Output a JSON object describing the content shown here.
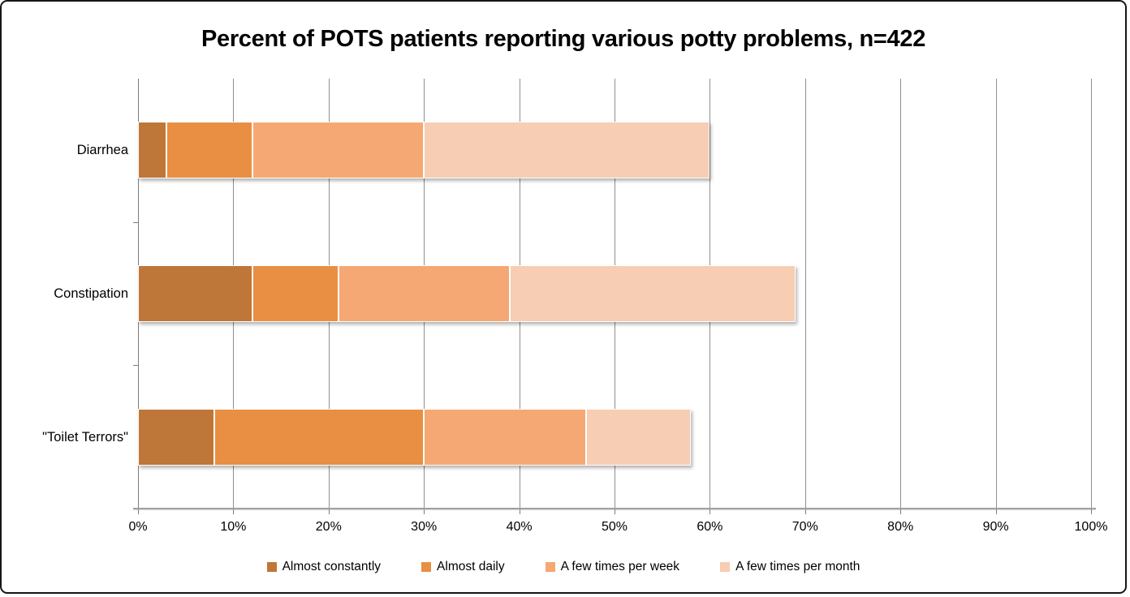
{
  "title": "Percent of POTS patients reporting various potty problems, n=422",
  "chart_data": {
    "type": "bar",
    "orientation": "horizontal",
    "stacked": true,
    "title": "Percent of POTS patients reporting various potty problems, n=422",
    "categories": [
      "Diarrhea",
      "Constipation",
      "\"Toilet Terrors\""
    ],
    "series": [
      {
        "name": "Almost constantly",
        "color": "#BF7639",
        "values": [
          3,
          12,
          8
        ]
      },
      {
        "name": "Almost daily",
        "color": "#E88F43",
        "values": [
          9,
          9,
          22
        ]
      },
      {
        "name": "A few times per week",
        "color": "#F5A873",
        "values": [
          18,
          18,
          17
        ]
      },
      {
        "name": "A few times per month",
        "color": "#F7CDB3",
        "values": [
          30,
          30,
          11
        ]
      }
    ],
    "stack_totals": [
      60,
      69,
      58
    ],
    "xlabel": "",
    "ylabel": "",
    "xlim": [
      0,
      100
    ],
    "x_tick_step": 10,
    "x_tick_labels": [
      "0%",
      "10%",
      "20%",
      "30%",
      "40%",
      "50%",
      "60%",
      "70%",
      "80%",
      "90%",
      "100%"
    ],
    "grid": "vertical",
    "legend_position": "bottom",
    "axis_color": "#8f8f8f",
    "background_color": "#ffffff"
  }
}
